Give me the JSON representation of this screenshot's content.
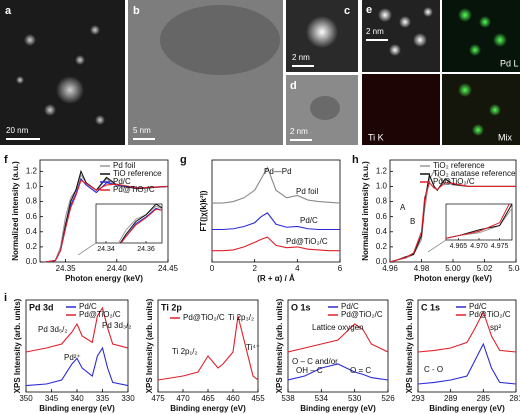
{
  "images": [
    {
      "label": "a",
      "scale": "20 nm"
    },
    {
      "label": "b",
      "scale": "5 nm"
    },
    {
      "label": "c",
      "scale": "2 nm"
    },
    {
      "label": "d",
      "scale": "2 nm"
    },
    {
      "label": "e",
      "scale": "2 nm",
      "channels": [
        "Pd L",
        "Ti K",
        "Mix"
      ]
    }
  ],
  "chart_data": [
    {
      "type": "line",
      "panel": "f",
      "xlabel": "Photon energy (keV)",
      "ylabel": "Normalized intensity (a.u.)",
      "xlim": [
        24.325,
        24.45
      ],
      "xticks": [
        24.35,
        {
          "value": 24.4,
          "label": "24.40"
        },
        24.45
      ],
      "ylim": [
        0,
        1.35
      ],
      "yticks": [
        {
          "value": 0,
          "label": "0.0"
        },
        0.2,
        0.4,
        0.6,
        0.8,
        {
          "value": 1,
          "label": "1.0"
        },
        1.2
      ],
      "x": [
        24.33,
        24.34,
        24.345,
        24.35,
        24.355,
        24.36,
        24.365,
        24.37,
        24.38,
        24.39,
        24.4,
        24.42,
        24.45
      ],
      "series": [
        {
          "name": "Pd foil",
          "color": "#9a9a9a",
          "values": [
            0,
            0.02,
            0.2,
            0.6,
            0.85,
            0.95,
            1.15,
            1.05,
            0.95,
            1.1,
            1.0,
            0.98,
            1.0
          ]
        },
        {
          "name": "TiO reference",
          "color": "#111111",
          "values": [
            0,
            0.02,
            0.15,
            0.5,
            0.8,
            0.95,
            1.2,
            1.05,
            0.95,
            1.12,
            1.02,
            0.97,
            1.0
          ]
        },
        {
          "name": "Pd/C",
          "color": "#2b2bd6",
          "values": [
            0,
            0.02,
            0.15,
            0.45,
            0.75,
            0.9,
            1.1,
            1.02,
            0.92,
            1.05,
            1.02,
            0.98,
            1.0
          ]
        },
        {
          "name": "Pd@TiO₂/C",
          "color": "#e0202a",
          "values": [
            0,
            0.02,
            0.15,
            0.45,
            0.72,
            0.88,
            1.08,
            1.04,
            0.95,
            1.02,
            1.03,
            0.98,
            1.0
          ]
        }
      ],
      "inset": {
        "xlim": [
          24.335,
          24.368
        ],
        "ylim": [
          0.3,
          1.2
        ],
        "xticks": [
          24.34,
          24.36
        ]
      }
    },
    {
      "type": "line",
      "panel": "g",
      "xlabel": "(R + α) / Å",
      "ylabel": "FT(|χ(k)k²|)",
      "xlim": [
        0,
        6
      ],
      "xticks": [
        0,
        2,
        4,
        6
      ],
      "ylim": [
        0,
        1.35
      ],
      "annotations": [
        "Pd—Pd"
      ],
      "x": [
        0,
        0.5,
        1,
        1.5,
        2,
        2.3,
        2.6,
        3,
        3.5,
        4,
        4.5,
        5,
        5.5,
        6
      ],
      "series": [
        {
          "name": "Pd foil",
          "color": "#8a8a8a",
          "values": [
            0.78,
            0.78,
            0.8,
            0.85,
            0.95,
            1.1,
            1.25,
            0.95,
            0.85,
            0.88,
            0.82,
            0.8,
            0.79,
            0.78
          ]
        },
        {
          "name": "Pd/C",
          "color": "#2b2bd6",
          "values": [
            0.43,
            0.43,
            0.44,
            0.47,
            0.52,
            0.6,
            0.65,
            0.5,
            0.46,
            0.47,
            0.44,
            0.43,
            0.43,
            0.43
          ]
        },
        {
          "name": "Pd@TiO₂/C",
          "color": "#e0202a",
          "values": [
            0.15,
            0.15,
            0.16,
            0.2,
            0.26,
            0.3,
            0.33,
            0.22,
            0.19,
            0.2,
            0.17,
            0.16,
            0.15,
            0.15
          ]
        }
      ]
    },
    {
      "type": "line",
      "panel": "h",
      "xlabel": "Photon energy (keV)",
      "ylabel": "Normalized intensity (a.u.)",
      "xlim": [
        4.96,
        5.04
      ],
      "xticks": [
        4.96,
        4.98,
        {
          "value": 5,
          "label": "5.00"
        },
        5.02,
        5.04
      ],
      "ylim": [
        0,
        1.35
      ],
      "yticks": [
        {
          "value": 0,
          "label": "0.0"
        },
        0.2,
        0.4,
        0.6,
        0.8,
        {
          "value": 1,
          "label": "1.0"
        },
        1.2
      ],
      "annotations": [
        "A",
        "B"
      ],
      "x": [
        4.96,
        4.965,
        4.97,
        4.975,
        4.98,
        4.982,
        4.985,
        4.988,
        4.99,
        4.995,
        5.0,
        5.01,
        5.02,
        5.04
      ],
      "series": [
        {
          "name": "TiO₂ reference",
          "color": "#9a9a9a",
          "values": [
            0,
            0.03,
            0.05,
            0.1,
            0.3,
            0.7,
            1.1,
            1.2,
            1.15,
            1.05,
            1.02,
            1.0,
            1.0,
            1.0
          ]
        },
        {
          "name": "TiO₂ anatase reference",
          "color": "#111111",
          "values": [
            0,
            0.03,
            0.07,
            0.1,
            0.35,
            0.8,
            1.15,
            1.0,
            0.95,
            1.1,
            1.03,
            1.0,
            1.0,
            1.0
          ]
        },
        {
          "name": "Pd@TiO₂/C",
          "color": "#e0202a",
          "values": [
            0,
            0.03,
            0.06,
            0.12,
            0.4,
            0.85,
            1.05,
            0.98,
            0.96,
            1.05,
            1.04,
            1.0,
            1.0,
            1.0
          ]
        }
      ],
      "inset": {
        "xlim": [
          4.962,
          4.978
        ],
        "ylim": [
          0,
          0.25
        ],
        "xticks": [
          4.965,
          {
            "value": 4.97,
            "label": "4.970"
          },
          4.975
        ]
      }
    },
    {
      "type": "line",
      "panel": "i",
      "title": "Pd 3d",
      "xlabel": "Binding energy (eV)",
      "ylabel": "XPS Intensity (arb. units)",
      "xlim": [
        350,
        330
      ],
      "xticks": [
        350,
        345,
        340,
        335,
        330
      ],
      "ylim": [
        0,
        1.15
      ],
      "annotations": [
        "Pd 3d₅/₂",
        "Pd 3d₃/₂",
        "Pd²⁺"
      ],
      "x": [
        350,
        346,
        343,
        341,
        340,
        339,
        337,
        336,
        335,
        334,
        333,
        330
      ],
      "series": [
        {
          "name": "Pd/C",
          "color": "#2b2bd6",
          "values": [
            0.08,
            0.1,
            0.15,
            0.35,
            0.42,
            0.3,
            0.2,
            0.45,
            0.55,
            0.3,
            0.12,
            0.08
          ]
        },
        {
          "name": "Pd@TiO₂/C",
          "color": "#e0202a",
          "values": [
            0.5,
            0.55,
            0.6,
            0.75,
            0.85,
            0.7,
            0.62,
            0.95,
            1.05,
            0.8,
            0.6,
            0.55
          ]
        }
      ]
    },
    {
      "type": "line",
      "title": "Ti 2p",
      "xlabel": "Binding energy (eV)",
      "ylabel": "XPS Intensity (arb. units)",
      "xlim": [
        475,
        455
      ],
      "xticks": [
        475,
        470,
        465,
        460,
        455
      ],
      "ylim": [
        0,
        1.15
      ],
      "annotations": [
        "Ti 2p₁/₂",
        "Ti 2p₃/₂",
        "Ti⁴⁺"
      ],
      "x": [
        475,
        470,
        467,
        465,
        463,
        462,
        460,
        459,
        458,
        456,
        455
      ],
      "series": [
        {
          "name": "Pd@TiO₂/C",
          "color": "#e0202a",
          "values": [
            0.15,
            0.2,
            0.25,
            0.45,
            0.3,
            0.35,
            0.5,
            0.95,
            0.7,
            0.2,
            0.15
          ]
        }
      ]
    },
    {
      "type": "line",
      "title": "O 1s",
      "xlabel": "Binding energy (eV)",
      "ylabel": "XPS Intensity (arb. units)",
      "xlim": [
        538,
        526
      ],
      "xticks": [
        538,
        534,
        530,
        526
      ],
      "ylim": [
        0,
        1.15
      ],
      "annotations": [
        "Lattice oxygen",
        "O – C and/or",
        "OH – C",
        "O = C"
      ],
      "x": [
        538,
        536,
        534,
        532,
        531,
        530,
        529,
        528,
        526
      ],
      "series": [
        {
          "name": "Pd/C",
          "color": "#2b2bd6",
          "values": [
            0.15,
            0.2,
            0.3,
            0.35,
            0.3,
            0.25,
            0.22,
            0.18,
            0.15
          ]
        },
        {
          "name": "Pd@TiO₂/C",
          "color": "#e0202a",
          "values": [
            0.5,
            0.55,
            0.6,
            0.65,
            0.75,
            0.85,
            0.78,
            0.6,
            0.5
          ]
        }
      ]
    },
    {
      "type": "line",
      "title": "C 1s",
      "xlabel": "Binding energy (eV)",
      "ylabel": "XPS Intensity (arb. units)",
      "xlim": [
        293,
        281
      ],
      "xticks": [
        293,
        289,
        285,
        281
      ],
      "ylim": [
        0,
        1.15
      ],
      "annotations": [
        "sp²",
        "C - O"
      ],
      "x": [
        293,
        291,
        289,
        287,
        286,
        285,
        284,
        283,
        281
      ],
      "series": [
        {
          "name": "Pd/C",
          "color": "#2b2bd6",
          "values": [
            0.1,
            0.12,
            0.15,
            0.2,
            0.4,
            0.6,
            0.3,
            0.12,
            0.1
          ]
        },
        {
          "name": "Pd@TiO₂/C",
          "color": "#e0202a",
          "values": [
            0.5,
            0.52,
            0.55,
            0.62,
            0.8,
            1.0,
            0.7,
            0.52,
            0.5
          ]
        }
      ]
    }
  ]
}
